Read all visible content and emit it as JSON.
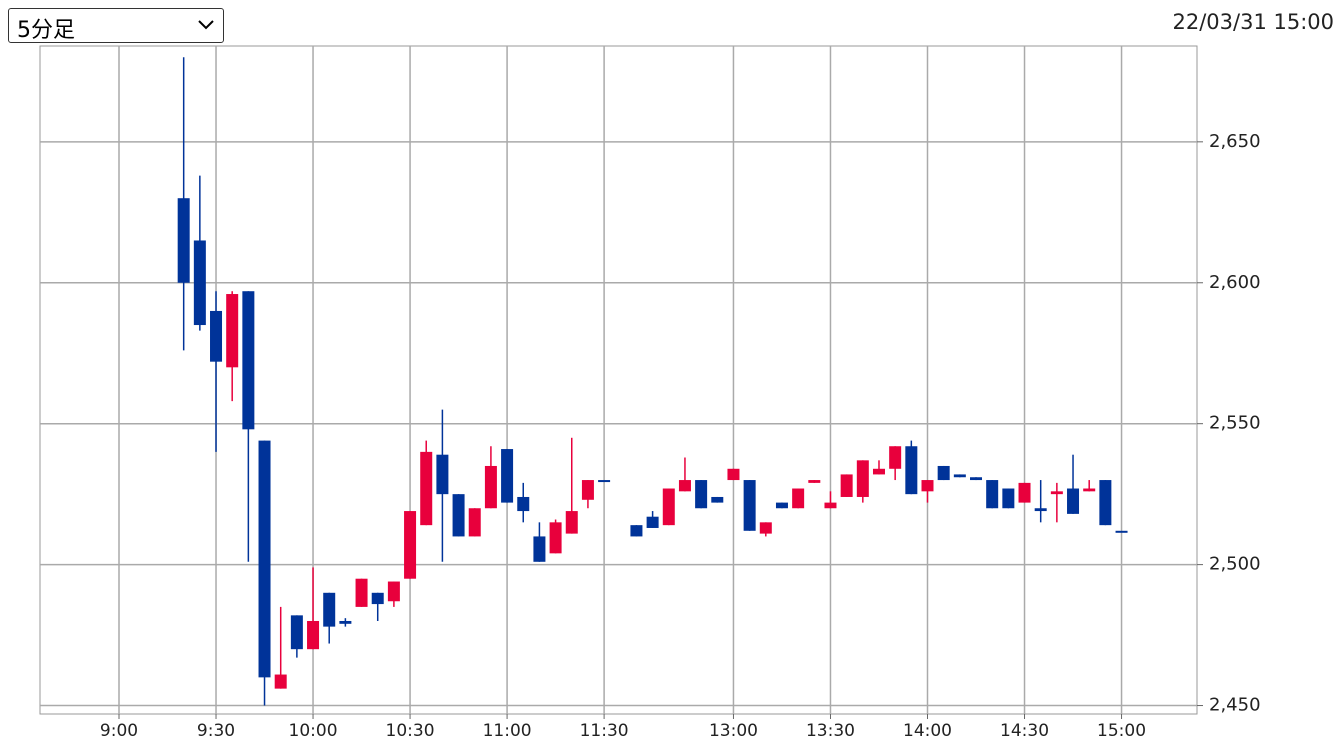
{
  "timeframe": "5分足",
  "timestamp": "22/03/31 15:00",
  "chart_data": {
    "type": "candlestick",
    "categories": [
      "9:00",
      null,
      null,
      null,
      null,
      null,
      "9:30",
      null,
      null,
      null,
      null,
      null,
      "10:00",
      null,
      null,
      null,
      null,
      null,
      "10:30",
      null,
      null,
      null,
      null,
      null,
      "11:00",
      null,
      null,
      null,
      null,
      null,
      "11:30",
      null,
      null,
      null,
      null,
      null,
      null,
      null,
      "13:00",
      null,
      null,
      null,
      null,
      null,
      "13:30",
      null,
      null,
      null,
      null,
      null,
      "14:00",
      null,
      null,
      null,
      null,
      null,
      "14:30",
      null,
      null,
      null,
      null,
      null,
      "15:00"
    ],
    "open": [
      null,
      null,
      null,
      null,
      2630,
      2615,
      2590,
      2570,
      2597,
      2544,
      2456,
      2482,
      2470,
      2490,
      2480,
      2485,
      2490,
      2487,
      2495,
      2514,
      2539,
      2525,
      2510,
      2520,
      2541,
      2524,
      2510,
      2504,
      2511,
      2523,
      2530,
      null,
      2514,
      2517,
      2514,
      2526,
      2530,
      2524,
      2530,
      2530,
      2511,
      2522,
      2520,
      2529,
      2520,
      2524,
      2524,
      2532,
      2534,
      2542,
      2526,
      2535,
      2532,
      2531,
      2530,
      2527,
      2522,
      2520,
      2525,
      2527,
      2526,
      2530,
      2512
    ],
    "high": [
      null,
      null,
      null,
      null,
      2680,
      2638,
      2597,
      2597,
      2597,
      2544,
      2485,
      2482,
      2499,
      2490,
      2481,
      2495,
      2490,
      2494,
      2519,
      2544,
      2555,
      2525,
      2520,
      2542,
      2541,
      2529,
      2515,
      2516,
      2545,
      2530,
      2530,
      null,
      2514,
      2519,
      2527,
      2538,
      2530,
      2524,
      2534,
      2530,
      2515,
      2522,
      2527,
      2530,
      2526,
      2532,
      2537,
      2537,
      2542,
      2544,
      2530,
      2535,
      2532,
      2531,
      2530,
      2527,
      2529,
      2530,
      2529,
      2539,
      2530,
      2530,
      2512
    ],
    "low": [
      null,
      null,
      null,
      null,
      2576,
      2583,
      2540,
      2558,
      2501,
      2450,
      2456,
      2467,
      2470,
      2472,
      2478,
      2485,
      2480,
      2485,
      2495,
      2514,
      2501,
      2510,
      2510,
      2520,
      2522,
      2515,
      2501,
      2504,
      2511,
      2520,
      2530,
      null,
      2510,
      2513,
      2514,
      2526,
      2520,
      2522,
      2530,
      2512,
      2510,
      2520,
      2520,
      2529,
      2520,
      2524,
      2522,
      2532,
      2530,
      2525,
      2522,
      2530,
      2531,
      2530,
      2520,
      2520,
      2522,
      2515,
      2515,
      2518,
      2526,
      2514,
      2512
    ],
    "close": [
      null,
      null,
      null,
      null,
      2600,
      2585,
      2572,
      2596,
      2548,
      2460,
      2461,
      2470,
      2480,
      2478,
      2479,
      2495,
      2486,
      2494,
      2519,
      2540,
      2525,
      2510,
      2520,
      2535,
      2522,
      2519,
      2501,
      2515,
      2519,
      2530,
      2530,
      null,
      2510,
      2513,
      2527,
      2530,
      2520,
      2522,
      2534,
      2512,
      2515,
      2520,
      2527,
      2530,
      2522,
      2532,
      2537,
      2534,
      2542,
      2525,
      2530,
      2530,
      2531,
      2530,
      2520,
      2520,
      2529,
      2519,
      2526,
      2518,
      2527,
      2514,
      2512
    ],
    "up_color": "#e8003c",
    "down_color": "#003399",
    "ylim": [
      2447,
      2684
    ],
    "yticks": [
      {
        "value": 2450,
        "label": "2,450"
      },
      {
        "value": 2500,
        "label": "2,500"
      },
      {
        "value": 2550,
        "label": "2,550"
      },
      {
        "value": 2600,
        "label": "2,600"
      },
      {
        "value": 2650,
        "label": "2,650"
      }
    ],
    "grid": true
  }
}
